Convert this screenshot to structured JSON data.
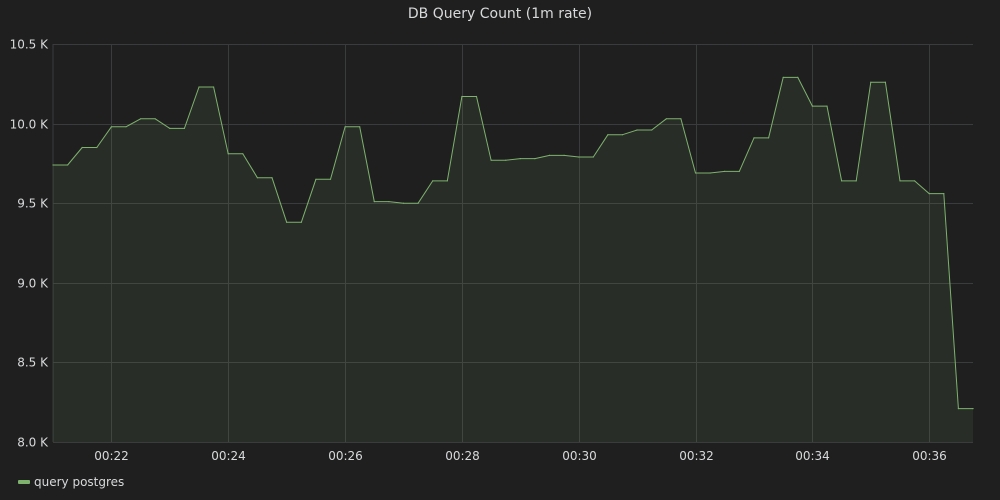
{
  "panel": {
    "title": "DB Query Count (1m rate)"
  },
  "colors": {
    "background": "#1f1f20",
    "grid": "#3a3b3c",
    "series": "#7eb26d",
    "series_fill": "#7eb26d"
  },
  "chart_data": {
    "type": "area",
    "title": "DB Query Count (1m rate)",
    "xlabel": "",
    "ylabel": "",
    "x_ticks": [
      "00:22",
      "00:24",
      "00:26",
      "00:28",
      "00:30",
      "00:32",
      "00:34",
      "00:36"
    ],
    "y_ticks": [
      "8.0 K",
      "8.5 K",
      "9.0 K",
      "9.5 K",
      "10.0 K",
      "10.5 K"
    ],
    "ylim": [
      8000,
      10500
    ],
    "xlim": [
      "00:21:00",
      "00:36:45"
    ],
    "grid": true,
    "legend_position": "bottom-left",
    "x": [
      "00:21:00",
      "00:21:15",
      "00:21:30",
      "00:21:45",
      "00:22:00",
      "00:22:15",
      "00:22:30",
      "00:22:45",
      "00:23:00",
      "00:23:15",
      "00:23:30",
      "00:23:45",
      "00:24:00",
      "00:24:15",
      "00:24:30",
      "00:24:45",
      "00:25:00",
      "00:25:15",
      "00:25:30",
      "00:25:45",
      "00:26:00",
      "00:26:15",
      "00:26:30",
      "00:26:45",
      "00:27:00",
      "00:27:15",
      "00:27:30",
      "00:27:45",
      "00:28:00",
      "00:28:15",
      "00:28:30",
      "00:28:45",
      "00:29:00",
      "00:29:15",
      "00:29:30",
      "00:29:45",
      "00:30:00",
      "00:30:15",
      "00:30:30",
      "00:30:45",
      "00:31:00",
      "00:31:15",
      "00:31:30",
      "00:31:45",
      "00:32:00",
      "00:32:15",
      "00:32:30",
      "00:32:45",
      "00:33:00",
      "00:33:15",
      "00:33:30",
      "00:33:45",
      "00:34:00",
      "00:34:15",
      "00:34:30",
      "00:34:45",
      "00:35:00",
      "00:35:15",
      "00:35:30",
      "00:35:45",
      "00:36:00",
      "00:36:15",
      "00:36:30",
      "00:36:45"
    ],
    "series": [
      {
        "name": "query postgres",
        "values": [
          9740,
          9740,
          9850,
          9850,
          9980,
          9980,
          10030,
          10030,
          9970,
          9970,
          10230,
          10230,
          9810,
          9810,
          9660,
          9660,
          9380,
          9380,
          9650,
          9650,
          9980,
          9980,
          9510,
          9510,
          9500,
          9500,
          9640,
          9640,
          10170,
          10170,
          9770,
          9770,
          9780,
          9780,
          9800,
          9800,
          9790,
          9790,
          9930,
          9930,
          9960,
          9960,
          10030,
          10030,
          9690,
          9690,
          9700,
          9700,
          9910,
          9910,
          10290,
          10290,
          10110,
          10110,
          9640,
          9640,
          10260,
          10260,
          9640,
          9640,
          9560,
          9560,
          8210,
          8210
        ]
      }
    ]
  }
}
